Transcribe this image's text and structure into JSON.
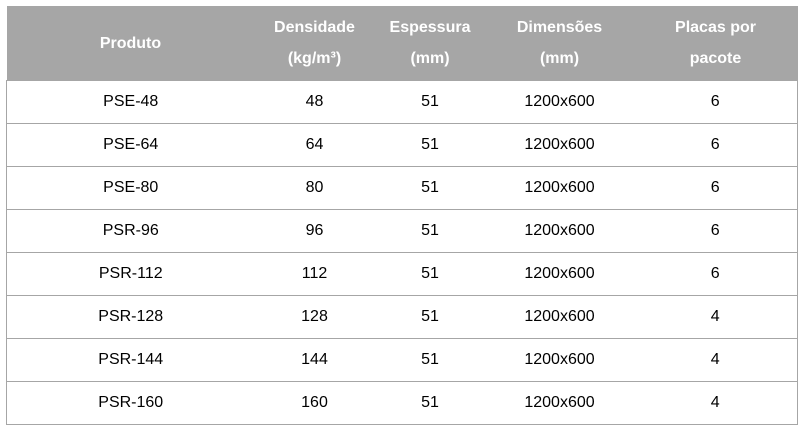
{
  "table": {
    "headers": [
      {
        "line1": "Produto",
        "line2": ""
      },
      {
        "line1": "Densidade",
        "line2": "(kg/m³)"
      },
      {
        "line1": "Espessura",
        "line2": "(mm)"
      },
      {
        "line1": "Dimensões",
        "line2": "(mm)"
      },
      {
        "line1": "Placas por",
        "line2": "pacote"
      }
    ],
    "rows": [
      [
        "PSE-48",
        "48",
        "51",
        "1200x600",
        "6"
      ],
      [
        "PSE-64",
        "64",
        "51",
        "1200x600",
        "6"
      ],
      [
        "PSE-80",
        "80",
        "51",
        "1200x600",
        "6"
      ],
      [
        "PSR-96",
        "96",
        "51",
        "1200x600",
        "6"
      ],
      [
        "PSR-112",
        "112",
        "51",
        "1200x600",
        "6"
      ],
      [
        "PSR-128",
        "128",
        "51",
        "1200x600",
        "4"
      ],
      [
        "PSR-144",
        "144",
        "51",
        "1200x600",
        "4"
      ],
      [
        "PSR-160",
        "160",
        "51",
        "1200x600",
        "4"
      ]
    ]
  }
}
